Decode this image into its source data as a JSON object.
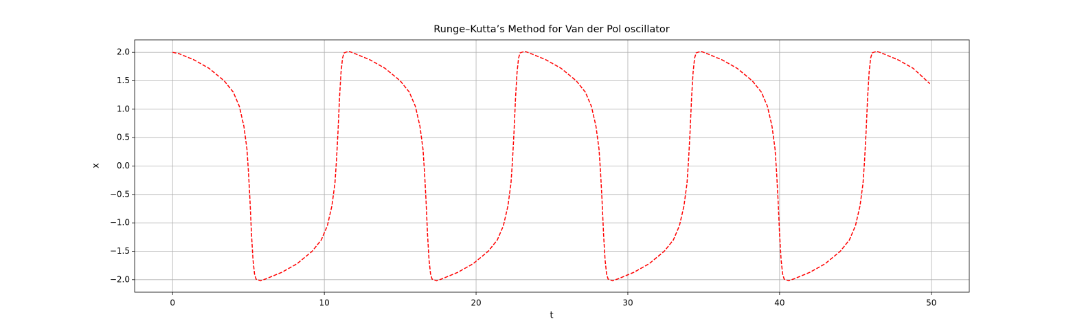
{
  "chart_data": {
    "type": "line",
    "title": "Runge–Kutta’s Method for Van der Pol oscillator",
    "xlabel": "t",
    "ylabel": "x",
    "xlim": [
      -2.5,
      52.5
    ],
    "ylim": [
      -2.22,
      2.22
    ],
    "xticks": [
      0,
      10,
      20,
      30,
      40,
      50
    ],
    "yticks": [
      {
        "value": -2.0,
        "label": "−2.0"
      },
      {
        "value": -1.5,
        "label": "−1.5"
      },
      {
        "value": -1.0,
        "label": "−1.0"
      },
      {
        "value": -0.5,
        "label": "−0.5"
      },
      {
        "value": 0.0,
        "label": "0.0"
      },
      {
        "value": 0.5,
        "label": "0.5"
      },
      {
        "value": 1.0,
        "label": "1.0"
      },
      {
        "value": 1.5,
        "label": "1.5"
      },
      {
        "value": 2.0,
        "label": "2.0"
      }
    ],
    "grid": true,
    "series": [
      {
        "color": "#ff0000",
        "dash": true,
        "x": [
          0,
          0.4,
          1.4,
          2.4,
          3.4,
          4.0,
          4.4,
          4.7,
          4.9,
          5.0,
          5.1,
          5.2,
          5.3,
          5.4,
          5.5,
          5.8,
          6.2,
          7.2,
          8.2,
          9.2,
          9.8,
          10.2,
          10.5,
          10.7,
          10.8,
          10.9,
          11.0,
          11.1,
          11.2,
          11.3,
          11.6,
          12.0,
          13.0,
          14.0,
          15.0,
          15.6,
          16.0,
          16.3,
          16.5,
          16.6,
          16.7,
          16.8,
          16.9,
          17.0,
          17.1,
          17.4,
          17.8,
          18.8,
          19.8,
          20.8,
          21.4,
          21.8,
          22.1,
          22.3,
          22.4,
          22.5,
          22.6,
          22.7,
          22.8,
          22.9,
          23.2,
          23.6,
          24.6,
          25.6,
          26.6,
          27.2,
          27.6,
          27.9,
          28.1,
          28.2,
          28.3,
          28.4,
          28.5,
          28.6,
          28.7,
          29.0,
          29.4,
          30.4,
          31.4,
          32.4,
          33.0,
          33.4,
          33.7,
          33.9,
          34.0,
          34.1,
          34.2,
          34.3,
          34.4,
          34.5,
          34.8,
          35.2,
          36.2,
          37.2,
          38.2,
          38.8,
          39.2,
          39.5,
          39.7,
          39.8,
          39.9,
          40.0,
          40.1,
          40.2,
          40.3,
          40.6,
          41.0,
          42.0,
          43.0,
          44.0,
          44.6,
          45.0,
          45.3,
          45.5,
          45.6,
          45.7,
          45.8,
          45.9,
          46.0,
          46.1,
          46.4,
          46.8,
          47.8,
          48.8,
          49.9
        ],
        "values": [
          2.0,
          1.98,
          1.87,
          1.72,
          1.5,
          1.3,
          1.05,
          0.7,
          0.3,
          -0.1,
          -0.6,
          -1.2,
          -1.65,
          -1.9,
          -1.99,
          -2.02,
          -1.98,
          -1.87,
          -1.72,
          -1.5,
          -1.3,
          -1.05,
          -0.7,
          -0.3,
          0.1,
          0.6,
          1.2,
          1.65,
          1.9,
          1.99,
          2.02,
          1.98,
          1.87,
          1.72,
          1.5,
          1.3,
          1.05,
          0.7,
          0.3,
          -0.1,
          -0.6,
          -1.2,
          -1.65,
          -1.9,
          -1.99,
          -2.02,
          -1.98,
          -1.87,
          -1.72,
          -1.5,
          -1.3,
          -1.05,
          -0.7,
          -0.3,
          0.1,
          0.6,
          1.2,
          1.65,
          1.9,
          1.99,
          2.02,
          1.98,
          1.87,
          1.72,
          1.5,
          1.3,
          1.05,
          0.7,
          0.3,
          -0.1,
          -0.6,
          -1.2,
          -1.65,
          -1.9,
          -1.99,
          -2.02,
          -1.98,
          -1.87,
          -1.72,
          -1.5,
          -1.3,
          -1.05,
          -0.7,
          -0.3,
          0.1,
          0.6,
          1.2,
          1.65,
          1.9,
          1.99,
          2.02,
          1.98,
          1.87,
          1.72,
          1.5,
          1.3,
          1.05,
          0.7,
          0.3,
          -0.1,
          -0.6,
          -1.2,
          -1.65,
          -1.9,
          -1.99,
          -2.02,
          -1.98,
          -1.87,
          -1.72,
          -1.5,
          -1.3,
          -1.05,
          -0.7,
          -0.3,
          0.1,
          0.6,
          1.2,
          1.65,
          1.9,
          1.99,
          2.02,
          1.98,
          1.87,
          1.72,
          1.45
        ]
      }
    ]
  }
}
